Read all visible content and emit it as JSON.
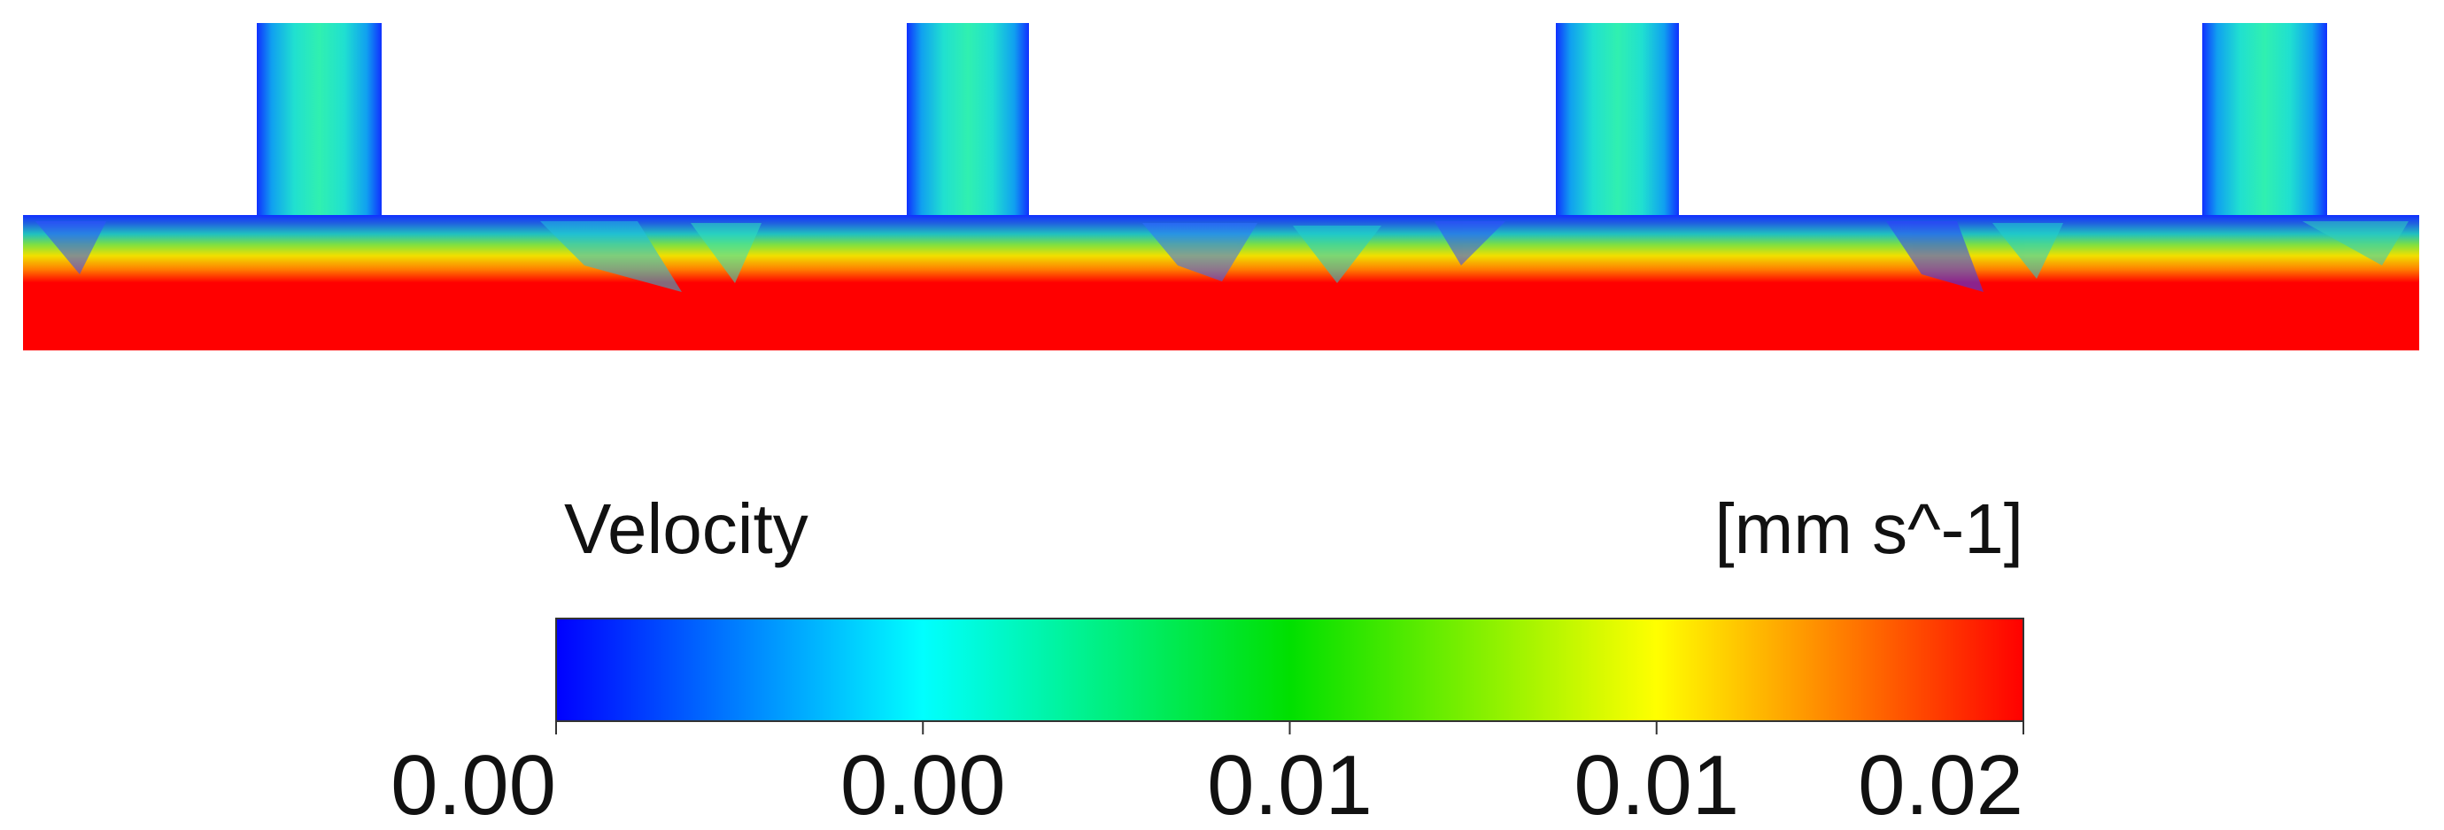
{
  "legend": {
    "title": "Velocity",
    "unit": "[mm s^-1]",
    "ticks": [
      "0.00",
      "0.00",
      "0.01",
      "0.01",
      "0.02"
    ]
  }
}
